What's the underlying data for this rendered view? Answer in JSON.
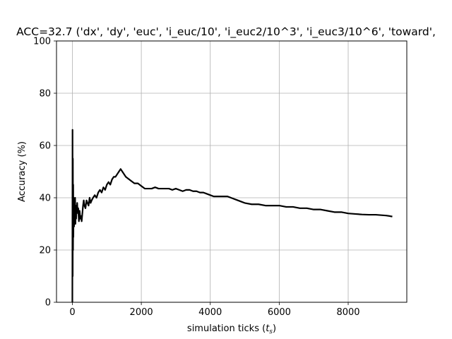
{
  "chart_data": {
    "type": "line",
    "title": "ACC=32.7 ('dx', 'dy', 'euc', 'i_euc/10', 'i_euc2/10^3', 'i_euc3/10^6', 'toward',",
    "xlabel_main": "simulation ticks (",
    "xlabel_sym": "t",
    "xlabel_sub": "s",
    "xlabel_end": ")",
    "ylabel": "Accuracy (%)",
    "xlim": [
      -460,
      9700
    ],
    "ylim": [
      0,
      100
    ],
    "xticks": [
      0,
      2000,
      4000,
      6000,
      8000
    ],
    "xtick_labels": [
      "0",
      "2000",
      "4000",
      "6000",
      "8000"
    ],
    "yticks": [
      0,
      20,
      40,
      60,
      80,
      100
    ],
    "ytick_labels": [
      "0",
      "20",
      "40",
      "60",
      "80",
      "100"
    ],
    "grid": true,
    "line_color": "#000000",
    "series": [
      {
        "x": [
          0,
          5,
          10,
          15,
          20,
          25,
          30,
          35,
          40,
          45,
          50,
          60,
          70,
          80,
          90,
          100,
          110,
          120,
          130,
          140,
          150,
          170,
          190,
          210,
          230,
          250,
          270,
          290,
          310,
          330,
          350,
          380,
          410,
          440,
          470,
          500,
          530,
          560,
          600,
          650,
          700,
          750,
          800,
          850,
          900,
          950,
          1000,
          1050,
          1100,
          1150,
          1200,
          1250,
          1300,
          1350,
          1400,
          1450,
          1500,
          1550,
          1600,
          1700,
          1800,
          1900,
          2000,
          2100,
          2200,
          2300,
          2400,
          2500,
          2600,
          2700,
          2800,
          2900,
          3000,
          3100,
          3200,
          3300,
          3400,
          3500,
          3600,
          3700,
          3800,
          3900,
          4000,
          4100,
          4200,
          4300,
          4400,
          4500,
          4600,
          4700,
          4800,
          4900,
          5000,
          5200,
          5400,
          5600,
          5800,
          6000,
          6200,
          6400,
          6600,
          6800,
          7000,
          7200,
          7400,
          7600,
          7800,
          8000,
          8200,
          8400,
          8600,
          8800,
          9000,
          9100,
          9200,
          9280
        ],
        "y": [
          0,
          66,
          10,
          55,
          20,
          45,
          25,
          40,
          30,
          38,
          29,
          36,
          33,
          40,
          30,
          37,
          32,
          36,
          34,
          38,
          35,
          36,
          31,
          35,
          32,
          33,
          31,
          34,
          37,
          39,
          37,
          36,
          39,
          38,
          37,
          40,
          38,
          39,
          40,
          41,
          40,
          42,
          43,
          42,
          44,
          43,
          45,
          46,
          45,
          47,
          48,
          48,
          49,
          50,
          51,
          50,
          49,
          48,
          47.5,
          46.5,
          45.5,
          45.5,
          44.5,
          43.5,
          43.5,
          43.5,
          44,
          43.5,
          43.5,
          43.5,
          43.5,
          43,
          43.5,
          43,
          42.5,
          43,
          43,
          42.5,
          42.5,
          42,
          42,
          41.5,
          41,
          40.5,
          40.5,
          40.5,
          40.5,
          40.5,
          40,
          39.5,
          39,
          38.5,
          38,
          37.5,
          37.5,
          37,
          37,
          37,
          36.5,
          36.5,
          36,
          36,
          35.5,
          35.5,
          35,
          34.5,
          34.5,
          34,
          33.8,
          33.6,
          33.5,
          33.5,
          33.3,
          33.2,
          33,
          32.8
        ]
      }
    ]
  }
}
